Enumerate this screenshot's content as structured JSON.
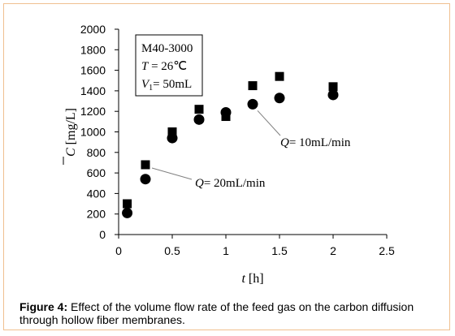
{
  "caption": {
    "label": "Figure 4:",
    "text": " Effect of the volume flow rate of the feed gas on the carbon diffusion through hollow fiber membranes."
  },
  "chart_data": {
    "type": "scatter",
    "xlabel": {
      "italic": "t",
      "rest": " [h]"
    },
    "ylabel": {
      "italic": "C",
      "rest": " [mg/L]",
      "overbar": true
    },
    "xlim": [
      0,
      2.5
    ],
    "ylim": [
      0,
      2000
    ],
    "xticks": [
      "0",
      "0.5",
      "1",
      "1.5",
      "2",
      "2.5"
    ],
    "yticks": [
      "0",
      "200",
      "400",
      "600",
      "800",
      "1000",
      "1200",
      "1400",
      "1600",
      "1800",
      "2000"
    ],
    "grid": false,
    "legend_box": {
      "line1": "M40-3000",
      "line2_italic": "T",
      "line2_rest": " = 26℃",
      "line3_italic": "V",
      "line3_sub": "1",
      "line3_rest": "= 50mL"
    },
    "series": [
      {
        "marker": "square",
        "color": "#000000",
        "x": [
          0.08,
          0.25,
          0.5,
          0.75,
          1.0,
          1.25,
          1.5,
          2.0
        ],
        "y": [
          300,
          680,
          1000,
          1220,
          1150,
          1450,
          1540,
          1440
        ]
      },
      {
        "marker": "circle",
        "color": "#000000",
        "x": [
          0.08,
          0.25,
          0.5,
          0.75,
          1.0,
          1.25,
          1.5,
          2.0
        ],
        "y": [
          210,
          540,
          940,
          1120,
          1190,
          1270,
          1330,
          1360
        ]
      }
    ],
    "annotations": [
      {
        "italic": "Q",
        "rest": "= 10mL/min",
        "x": 1.25,
        "y": 1270
      },
      {
        "italic": "Q",
        "rest": "= 20mL/min",
        "x": 0.25,
        "y": 680
      }
    ]
  }
}
